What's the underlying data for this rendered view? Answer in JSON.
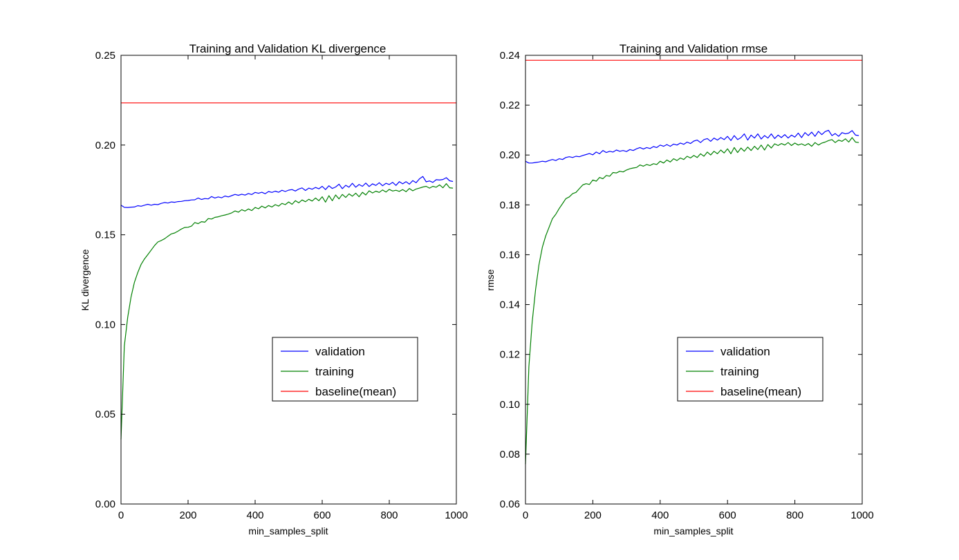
{
  "chart_data": [
    {
      "type": "line",
      "title": "Training and Validation KL divergence",
      "xlabel": "min_samples_split",
      "ylabel": "KL divergence",
      "xlim": [
        0,
        1000
      ],
      "ylim": [
        0,
        0.25
      ],
      "x_ticks": [
        0,
        200,
        400,
        600,
        800,
        1000
      ],
      "x_tick_labels": [
        "0",
        "200",
        "400",
        "600",
        "800",
        "1000"
      ],
      "y_ticks": [
        0,
        0.05,
        0.1,
        0.15,
        0.2,
        0.25
      ],
      "y_tick_labels": [
        "0.00",
        "0.05",
        "0.10",
        "0.15",
        "0.20",
        "0.25"
      ],
      "grid": false,
      "legend_position": "lower-right",
      "series": [
        {
          "name": "validation",
          "color": "#0000ff",
          "x": [
            0,
            10,
            20,
            30,
            40,
            50,
            60,
            70,
            80,
            90,
            100,
            110,
            120,
            130,
            140,
            150,
            160,
            170,
            180,
            190,
            200,
            210,
            220,
            230,
            240,
            250,
            260,
            270,
            280,
            290,
            300,
            310,
            320,
            330,
            340,
            350,
            360,
            370,
            380,
            390,
            400,
            410,
            420,
            430,
            440,
            450,
            460,
            470,
            480,
            490,
            500,
            510,
            520,
            530,
            540,
            550,
            560,
            570,
            580,
            590,
            600,
            610,
            620,
            630,
            640,
            650,
            660,
            670,
            680,
            690,
            700,
            710,
            720,
            730,
            740,
            750,
            760,
            770,
            780,
            790,
            800,
            810,
            820,
            830,
            840,
            850,
            860,
            870,
            880,
            890,
            900,
            910,
            920,
            930,
            940,
            950,
            960,
            970,
            980,
            990
          ],
          "y": [
            0.1665,
            0.1653,
            0.1652,
            0.1654,
            0.1655,
            0.1662,
            0.1659,
            0.1665,
            0.167,
            0.1665,
            0.167,
            0.1668,
            0.1675,
            0.168,
            0.1677,
            0.1683,
            0.1681,
            0.1685,
            0.1686,
            0.169,
            0.1691,
            0.1694,
            0.1695,
            0.1705,
            0.1697,
            0.1702,
            0.17,
            0.1713,
            0.1705,
            0.1711,
            0.1706,
            0.1716,
            0.1711,
            0.1718,
            0.1725,
            0.172,
            0.1726,
            0.1721,
            0.173,
            0.1724,
            0.1736,
            0.1731,
            0.1737,
            0.1729,
            0.1741,
            0.1736,
            0.1743,
            0.1737,
            0.1748,
            0.1741,
            0.1749,
            0.1752,
            0.1744,
            0.1755,
            0.1761,
            0.1747,
            0.176,
            0.1754,
            0.1764,
            0.1756,
            0.177,
            0.1752,
            0.1773,
            0.1758,
            0.1766,
            0.1782,
            0.1757,
            0.1776,
            0.1765,
            0.1787,
            0.1765,
            0.178,
            0.177,
            0.1788,
            0.1769,
            0.1784,
            0.1775,
            0.179,
            0.1773,
            0.1787,
            0.178,
            0.1792,
            0.1775,
            0.1796,
            0.1784,
            0.1796,
            0.1782,
            0.1802,
            0.179,
            0.1812,
            0.1825,
            0.1795,
            0.18,
            0.1792,
            0.1807,
            0.1805,
            0.1808,
            0.1818,
            0.1801,
            0.1797
          ]
        },
        {
          "name": "training",
          "color": "#008000",
          "x": [
            0,
            10,
            20,
            30,
            40,
            50,
            60,
            70,
            80,
            90,
            100,
            110,
            120,
            130,
            140,
            150,
            160,
            170,
            180,
            190,
            200,
            210,
            220,
            230,
            240,
            250,
            260,
            270,
            280,
            290,
            300,
            310,
            320,
            330,
            340,
            350,
            360,
            370,
            380,
            390,
            400,
            410,
            420,
            430,
            440,
            450,
            460,
            470,
            480,
            490,
            500,
            510,
            520,
            530,
            540,
            550,
            560,
            570,
            580,
            590,
            600,
            610,
            620,
            630,
            640,
            650,
            660,
            670,
            680,
            690,
            700,
            710,
            720,
            730,
            740,
            750,
            760,
            770,
            780,
            790,
            800,
            810,
            820,
            830,
            840,
            850,
            860,
            870,
            880,
            890,
            900,
            910,
            920,
            930,
            940,
            950,
            960,
            970,
            980,
            990
          ],
          "y": [
            0.036,
            0.088,
            0.104,
            0.1155,
            0.1235,
            0.129,
            0.1335,
            0.1365,
            0.139,
            0.1415,
            0.144,
            0.146,
            0.1468,
            0.1478,
            0.1492,
            0.1505,
            0.151,
            0.152,
            0.1532,
            0.1541,
            0.1542,
            0.1548,
            0.1568,
            0.1562,
            0.1573,
            0.157,
            0.159,
            0.1588,
            0.1597,
            0.16,
            0.1606,
            0.161,
            0.1615,
            0.1622,
            0.1633,
            0.1626,
            0.164,
            0.1632,
            0.1644,
            0.1635,
            0.1652,
            0.1645,
            0.166,
            0.165,
            0.1663,
            0.1655,
            0.1668,
            0.166,
            0.1675,
            0.1668,
            0.1683,
            0.167,
            0.169,
            0.1678,
            0.1694,
            0.1684,
            0.1698,
            0.1688,
            0.1705,
            0.169,
            0.1712,
            0.1682,
            0.1718,
            0.169,
            0.1722,
            0.17,
            0.1725,
            0.1708,
            0.1728,
            0.1715,
            0.1732,
            0.1712,
            0.1737,
            0.1722,
            0.1745,
            0.1733,
            0.1743,
            0.1736,
            0.175,
            0.1738,
            0.1753,
            0.1744,
            0.1748,
            0.1742,
            0.1752,
            0.174,
            0.1758,
            0.1745,
            0.1755,
            0.176,
            0.1766,
            0.177,
            0.176,
            0.177,
            0.1765,
            0.1778,
            0.1762,
            0.1785,
            0.1762,
            0.176
          ]
        },
        {
          "name": "baseline(mean)",
          "color": "#ff0000",
          "x": [
            0,
            1000
          ],
          "y": [
            0.2235,
            0.2235
          ]
        }
      ]
    },
    {
      "type": "line",
      "title": "Training and Validation rmse",
      "xlabel": "min_samples_split",
      "ylabel": "rmse",
      "xlim": [
        0,
        1000
      ],
      "ylim": [
        0.06,
        0.24
      ],
      "x_ticks": [
        0,
        200,
        400,
        600,
        800,
        1000
      ],
      "x_tick_labels": [
        "0",
        "200",
        "400",
        "600",
        "800",
        "1000"
      ],
      "y_ticks": [
        0.06,
        0.08,
        0.1,
        0.12,
        0.14,
        0.16,
        0.18,
        0.2,
        0.22,
        0.24
      ],
      "y_tick_labels": [
        "0.06",
        "0.08",
        "0.10",
        "0.12",
        "0.14",
        "0.16",
        "0.18",
        "0.20",
        "0.22",
        "0.24"
      ],
      "grid": false,
      "legend_position": "lower-right",
      "series": [
        {
          "name": "validation",
          "color": "#0000ff",
          "x": [
            0,
            10,
            20,
            30,
            40,
            50,
            60,
            70,
            80,
            90,
            100,
            110,
            120,
            130,
            140,
            150,
            160,
            170,
            180,
            190,
            200,
            210,
            220,
            230,
            240,
            250,
            260,
            270,
            280,
            290,
            300,
            310,
            320,
            330,
            340,
            350,
            360,
            370,
            380,
            390,
            400,
            410,
            420,
            430,
            440,
            450,
            460,
            470,
            480,
            490,
            500,
            510,
            520,
            530,
            540,
            550,
            560,
            570,
            580,
            590,
            600,
            610,
            620,
            630,
            640,
            650,
            660,
            670,
            680,
            690,
            700,
            710,
            720,
            730,
            740,
            750,
            760,
            770,
            780,
            790,
            800,
            810,
            820,
            830,
            840,
            850,
            860,
            870,
            880,
            890,
            900,
            910,
            920,
            930,
            940,
            950,
            960,
            970,
            980,
            990
          ],
          "y": [
            0.1975,
            0.1968,
            0.1968,
            0.197,
            0.1972,
            0.1975,
            0.1973,
            0.1978,
            0.1982,
            0.1978,
            0.1985,
            0.1982,
            0.199,
            0.1993,
            0.199,
            0.1995,
            0.1993,
            0.1998,
            0.2002,
            0.2006,
            0.2001,
            0.2012,
            0.2005,
            0.2018,
            0.201,
            0.2015,
            0.2012,
            0.202,
            0.2015,
            0.2018,
            0.2014,
            0.2022,
            0.2018,
            0.2025,
            0.203,
            0.2024,
            0.203,
            0.2026,
            0.2034,
            0.203,
            0.204,
            0.2035,
            0.2042,
            0.2035,
            0.2044,
            0.204,
            0.2048,
            0.2043,
            0.2052,
            0.2046,
            0.2056,
            0.206,
            0.205,
            0.2062,
            0.2066,
            0.2055,
            0.2068,
            0.206,
            0.207,
            0.2062,
            0.2075,
            0.2058,
            0.2078,
            0.2062,
            0.207,
            0.2085,
            0.206,
            0.208,
            0.2068,
            0.2085,
            0.2064,
            0.2078,
            0.2068,
            0.2085,
            0.2066,
            0.208,
            0.207,
            0.2082,
            0.2068,
            0.208,
            0.2072,
            0.2088,
            0.207,
            0.209,
            0.2078,
            0.2092,
            0.2075,
            0.2095,
            0.2082,
            0.2094,
            0.2099,
            0.2078,
            0.2086,
            0.2075,
            0.209,
            0.2085,
            0.2088,
            0.2098,
            0.208,
            0.2078
          ]
        },
        {
          "name": "training",
          "color": "#008000",
          "x": [
            0,
            10,
            20,
            30,
            40,
            50,
            60,
            70,
            80,
            90,
            100,
            110,
            120,
            130,
            140,
            150,
            160,
            170,
            180,
            190,
            200,
            210,
            220,
            230,
            240,
            250,
            260,
            270,
            280,
            290,
            300,
            310,
            320,
            330,
            340,
            350,
            360,
            370,
            380,
            390,
            400,
            410,
            420,
            430,
            440,
            450,
            460,
            470,
            480,
            490,
            500,
            510,
            520,
            530,
            540,
            550,
            560,
            570,
            580,
            590,
            600,
            610,
            620,
            630,
            640,
            650,
            660,
            670,
            680,
            690,
            700,
            710,
            720,
            730,
            740,
            750,
            760,
            770,
            780,
            790,
            800,
            810,
            820,
            830,
            840,
            850,
            860,
            870,
            880,
            890,
            900,
            910,
            920,
            930,
            940,
            950,
            960,
            970,
            980,
            990
          ],
          "y": [
            0.076,
            0.115,
            0.133,
            0.146,
            0.156,
            0.163,
            0.1675,
            0.171,
            0.1745,
            0.1762,
            0.1785,
            0.1805,
            0.1825,
            0.1832,
            0.1845,
            0.185,
            0.1865,
            0.188,
            0.1885,
            0.1882,
            0.19,
            0.1895,
            0.191,
            0.1905,
            0.1918,
            0.1915,
            0.193,
            0.1928,
            0.1935,
            0.1932,
            0.194,
            0.1945,
            0.1948,
            0.195,
            0.196,
            0.1955,
            0.1962,
            0.1958,
            0.1965,
            0.1962,
            0.1975,
            0.1968,
            0.198,
            0.1972,
            0.1985,
            0.1978,
            0.1988,
            0.1982,
            0.1995,
            0.1988,
            0.1998,
            0.199,
            0.2005,
            0.1995,
            0.2012,
            0.2,
            0.2015,
            0.2005,
            0.202,
            0.2008,
            0.2025,
            0.2005,
            0.203,
            0.201,
            0.2028,
            0.2015,
            0.2032,
            0.2018,
            0.2035,
            0.2022,
            0.204,
            0.202,
            0.2042,
            0.2028,
            0.2045,
            0.2038,
            0.2046,
            0.204,
            0.205,
            0.2038,
            0.2048,
            0.204,
            0.2045,
            0.2038,
            0.2046,
            0.2035,
            0.205,
            0.204,
            0.2048,
            0.2052,
            0.2058,
            0.2062,
            0.205,
            0.206,
            0.2055,
            0.2065,
            0.2052,
            0.207,
            0.2052,
            0.205
          ]
        },
        {
          "name": "baseline(mean)",
          "color": "#ff0000",
          "x": [
            0,
            1000
          ],
          "y": [
            0.238,
            0.238
          ]
        }
      ]
    }
  ]
}
